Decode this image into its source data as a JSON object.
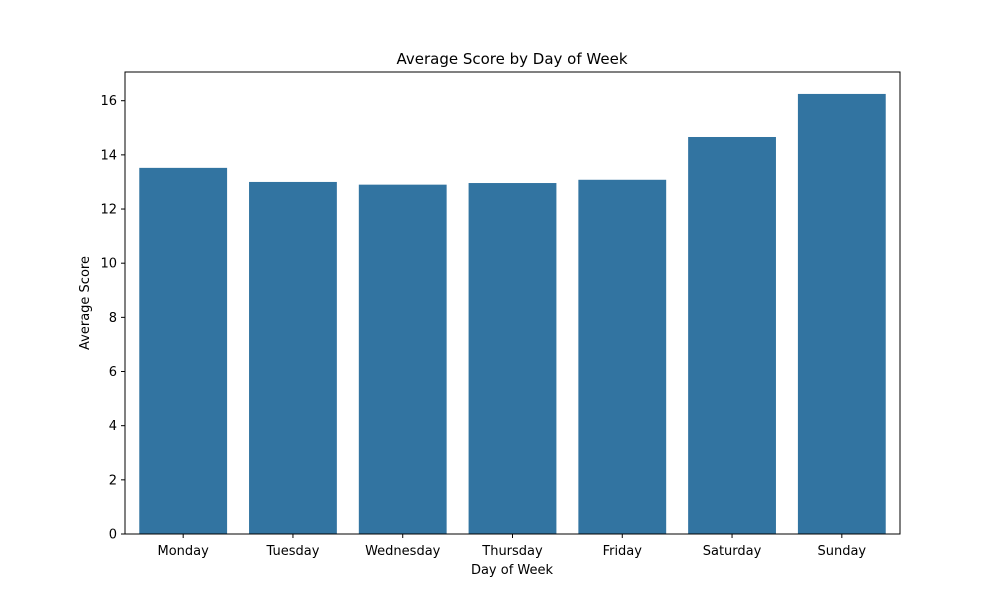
{
  "chart_data": {
    "type": "bar",
    "title": "Average Score by Day of Week",
    "xlabel": "Day of Week",
    "ylabel": "Average Score",
    "categories": [
      "Monday",
      "Tuesday",
      "Wednesday",
      "Thursday",
      "Friday",
      "Saturday",
      "Sunday"
    ],
    "values": [
      13.52,
      13.0,
      12.9,
      12.96,
      13.08,
      14.66,
      16.25
    ],
    "ylim": [
      0,
      17.06
    ],
    "yticks": [
      0,
      2,
      4,
      6,
      8,
      10,
      12,
      14,
      16
    ],
    "ytick_labels": [
      "0",
      "2",
      "4",
      "6",
      "8",
      "10",
      "12",
      "14",
      "16"
    ],
    "bar_color": "#3274a1",
    "grid": false,
    "legend": "none"
  }
}
